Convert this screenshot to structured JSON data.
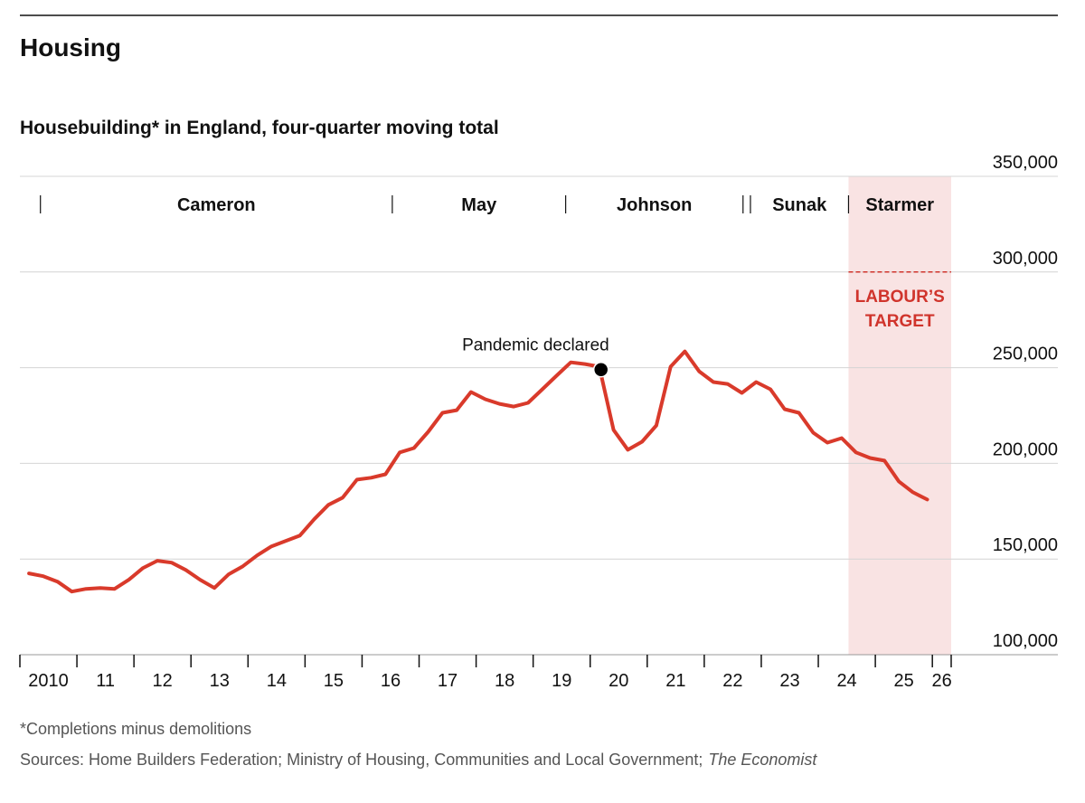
{
  "chart_data": {
    "type": "line",
    "title": "Housing",
    "subtitle": "Housebuilding* in England, four-quarter moving total",
    "footnote": "*Completions minus demolitions",
    "source": "Sources: Home Builders Federation; Ministry of Housing, Communities and Local Government;",
    "source_italic": "The Economist",
    "xlim": [
      2010,
      2026.33
    ],
    "xticks": [
      {
        "value": 2010,
        "label": "2010"
      },
      {
        "value": 2011,
        "label": "11"
      },
      {
        "value": 2012,
        "label": "12"
      },
      {
        "value": 2013,
        "label": "13"
      },
      {
        "value": 2014,
        "label": "14"
      },
      {
        "value": 2015,
        "label": "15"
      },
      {
        "value": 2016,
        "label": "16"
      },
      {
        "value": 2017,
        "label": "17"
      },
      {
        "value": 2018,
        "label": "18"
      },
      {
        "value": 2019,
        "label": "19"
      },
      {
        "value": 2020,
        "label": "20"
      },
      {
        "value": 2021,
        "label": "21"
      },
      {
        "value": 2022,
        "label": "22"
      },
      {
        "value": 2023,
        "label": "23"
      },
      {
        "value": 2024,
        "label": "24"
      },
      {
        "value": 2025,
        "label": "25"
      },
      {
        "value": 2026,
        "label": "26"
      }
    ],
    "ylim": [
      100000,
      350000
    ],
    "yticks": [
      {
        "value": 100000,
        "label": "100,000"
      },
      {
        "value": 150000,
        "label": "150,000"
      },
      {
        "value": 200000,
        "label": "200,000"
      },
      {
        "value": 250000,
        "label": "250,000"
      },
      {
        "value": 300000,
        "label": "300,000"
      },
      {
        "value": 350000,
        "label": "350,000"
      }
    ],
    "grid": true,
    "pm_starts": [
      2010.36,
      2016.53,
      2019.57,
      2022.68,
      2022.81,
      2024.53
    ],
    "pm_names": [
      "Cameron",
      "May",
      "Johnson",
      null,
      "Sunak",
      "Starmer"
    ],
    "shaded_span": [
      2024.53,
      2026.33
    ],
    "shade_color": "#f9e3e3",
    "target": {
      "value": 300000,
      "label": [
        "LABOUR’S",
        "TARGET"
      ],
      "color": "#d0342c"
    },
    "event": {
      "x": 2020.19,
      "value": 249000,
      "label": "Pandemic declared"
    },
    "x": [
      2010.16,
      2010.41,
      2010.66,
      2010.91,
      2011.16,
      2011.41,
      2011.66,
      2011.91,
      2012.16,
      2012.41,
      2012.66,
      2012.91,
      2013.16,
      2013.41,
      2013.66,
      2013.91,
      2014.16,
      2014.41,
      2014.66,
      2014.91,
      2015.16,
      2015.41,
      2015.66,
      2015.91,
      2016.16,
      2016.41,
      2016.66,
      2016.91,
      2017.16,
      2017.41,
      2017.66,
      2017.91,
      2018.16,
      2018.41,
      2018.66,
      2018.91,
      2019.16,
      2019.41,
      2019.66,
      2019.91,
      2020.16,
      2020.41,
      2020.66,
      2020.91,
      2021.16,
      2021.41,
      2021.66,
      2021.91,
      2022.16,
      2022.41,
      2022.66,
      2022.91,
      2023.16,
      2023.41,
      2023.66,
      2023.91,
      2024.16,
      2024.41,
      2024.66,
      2024.91,
      2025.16,
      2025.41,
      2025.66,
      2025.91
    ],
    "series": [
      {
        "name": "Housebuilding",
        "color": "#d93a2b",
        "values": [
          142500,
          141000,
          138200,
          133000,
          134400,
          134900,
          134400,
          139200,
          145300,
          149100,
          148100,
          144300,
          139200,
          134900,
          142000,
          146200,
          151900,
          156600,
          159400,
          162300,
          170800,
          178300,
          182100,
          191500,
          192500,
          194300,
          205700,
          208000,
          216500,
          226400,
          227800,
          237300,
          233500,
          231100,
          229700,
          231600,
          238700,
          245800,
          252800,
          251900,
          250500,
          217500,
          207100,
          211300,
          219800,
          250500,
          258500,
          248100,
          242500,
          241500,
          236800,
          242500,
          238700,
          228300,
          226400,
          216000,
          210800,
          213200,
          205700,
          202800,
          201400,
          190600,
          184900,
          181100
        ]
      }
    ]
  }
}
